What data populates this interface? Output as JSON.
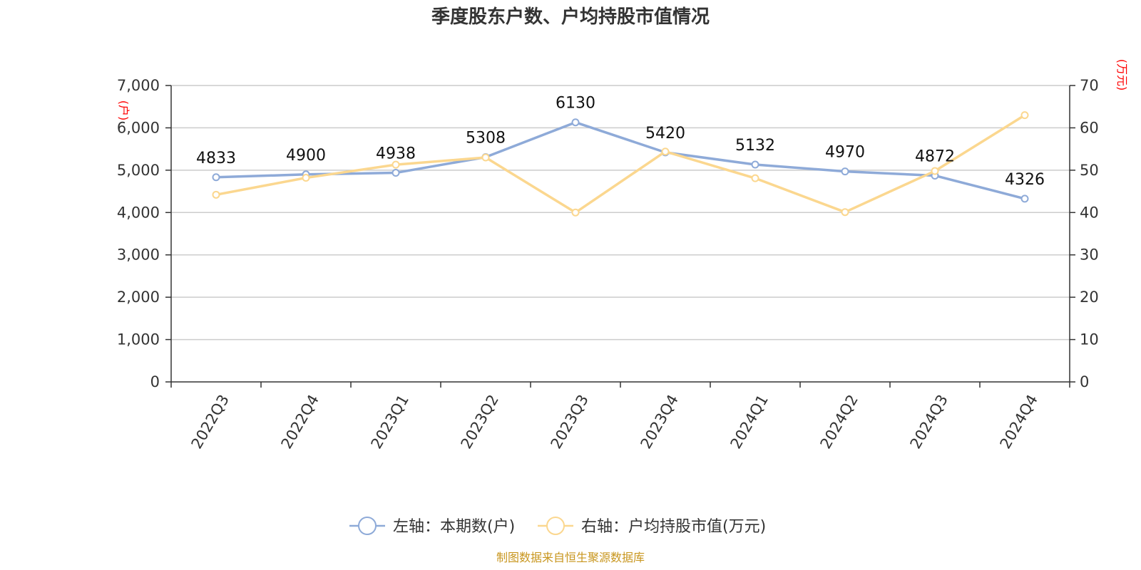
{
  "chart_data": {
    "type": "line",
    "title": "季度股东户数、户均持股市值情况",
    "categories": [
      "2022Q3",
      "2022Q4",
      "2023Q1",
      "2023Q2",
      "2023Q3",
      "2023Q4",
      "2024Q1",
      "2024Q2",
      "2024Q3",
      "2024Q4"
    ],
    "series": [
      {
        "name": "左轴：本期数(户)",
        "axis": "left",
        "color": "#8eaad8",
        "values": [
          4833,
          4900,
          4938,
          5308,
          6130,
          5420,
          5132,
          4970,
          4872,
          4326
        ],
        "show_labels": true
      },
      {
        "name": "右轴：户均持股市值(万元)",
        "axis": "right",
        "color": "#fbd78f",
        "values": [
          44.2,
          48.2,
          51.3,
          53.0,
          40.0,
          54.4,
          48.1,
          40.1,
          49.8,
          63.0
        ],
        "show_labels": false
      }
    ],
    "left_axis": {
      "unit": "(户)",
      "ylim": [
        0,
        7000
      ],
      "ticks": [
        0,
        1000,
        2000,
        3000,
        4000,
        5000,
        6000,
        7000
      ],
      "tick_labels": [
        "0",
        "1,000",
        "2,000",
        "3,000",
        "4,000",
        "5,000",
        "6,000",
        "7,000"
      ]
    },
    "right_axis": {
      "unit": "(万元)",
      "ylim": [
        0,
        70
      ],
      "ticks": [
        0,
        10,
        20,
        30,
        40,
        50,
        60,
        70
      ],
      "tick_labels": [
        "0",
        "10",
        "20",
        "30",
        "40",
        "50",
        "60",
        "70"
      ]
    },
    "grid": true,
    "legend_position": "bottom-center",
    "source": "制图数据来自恒生聚源数据库"
  }
}
